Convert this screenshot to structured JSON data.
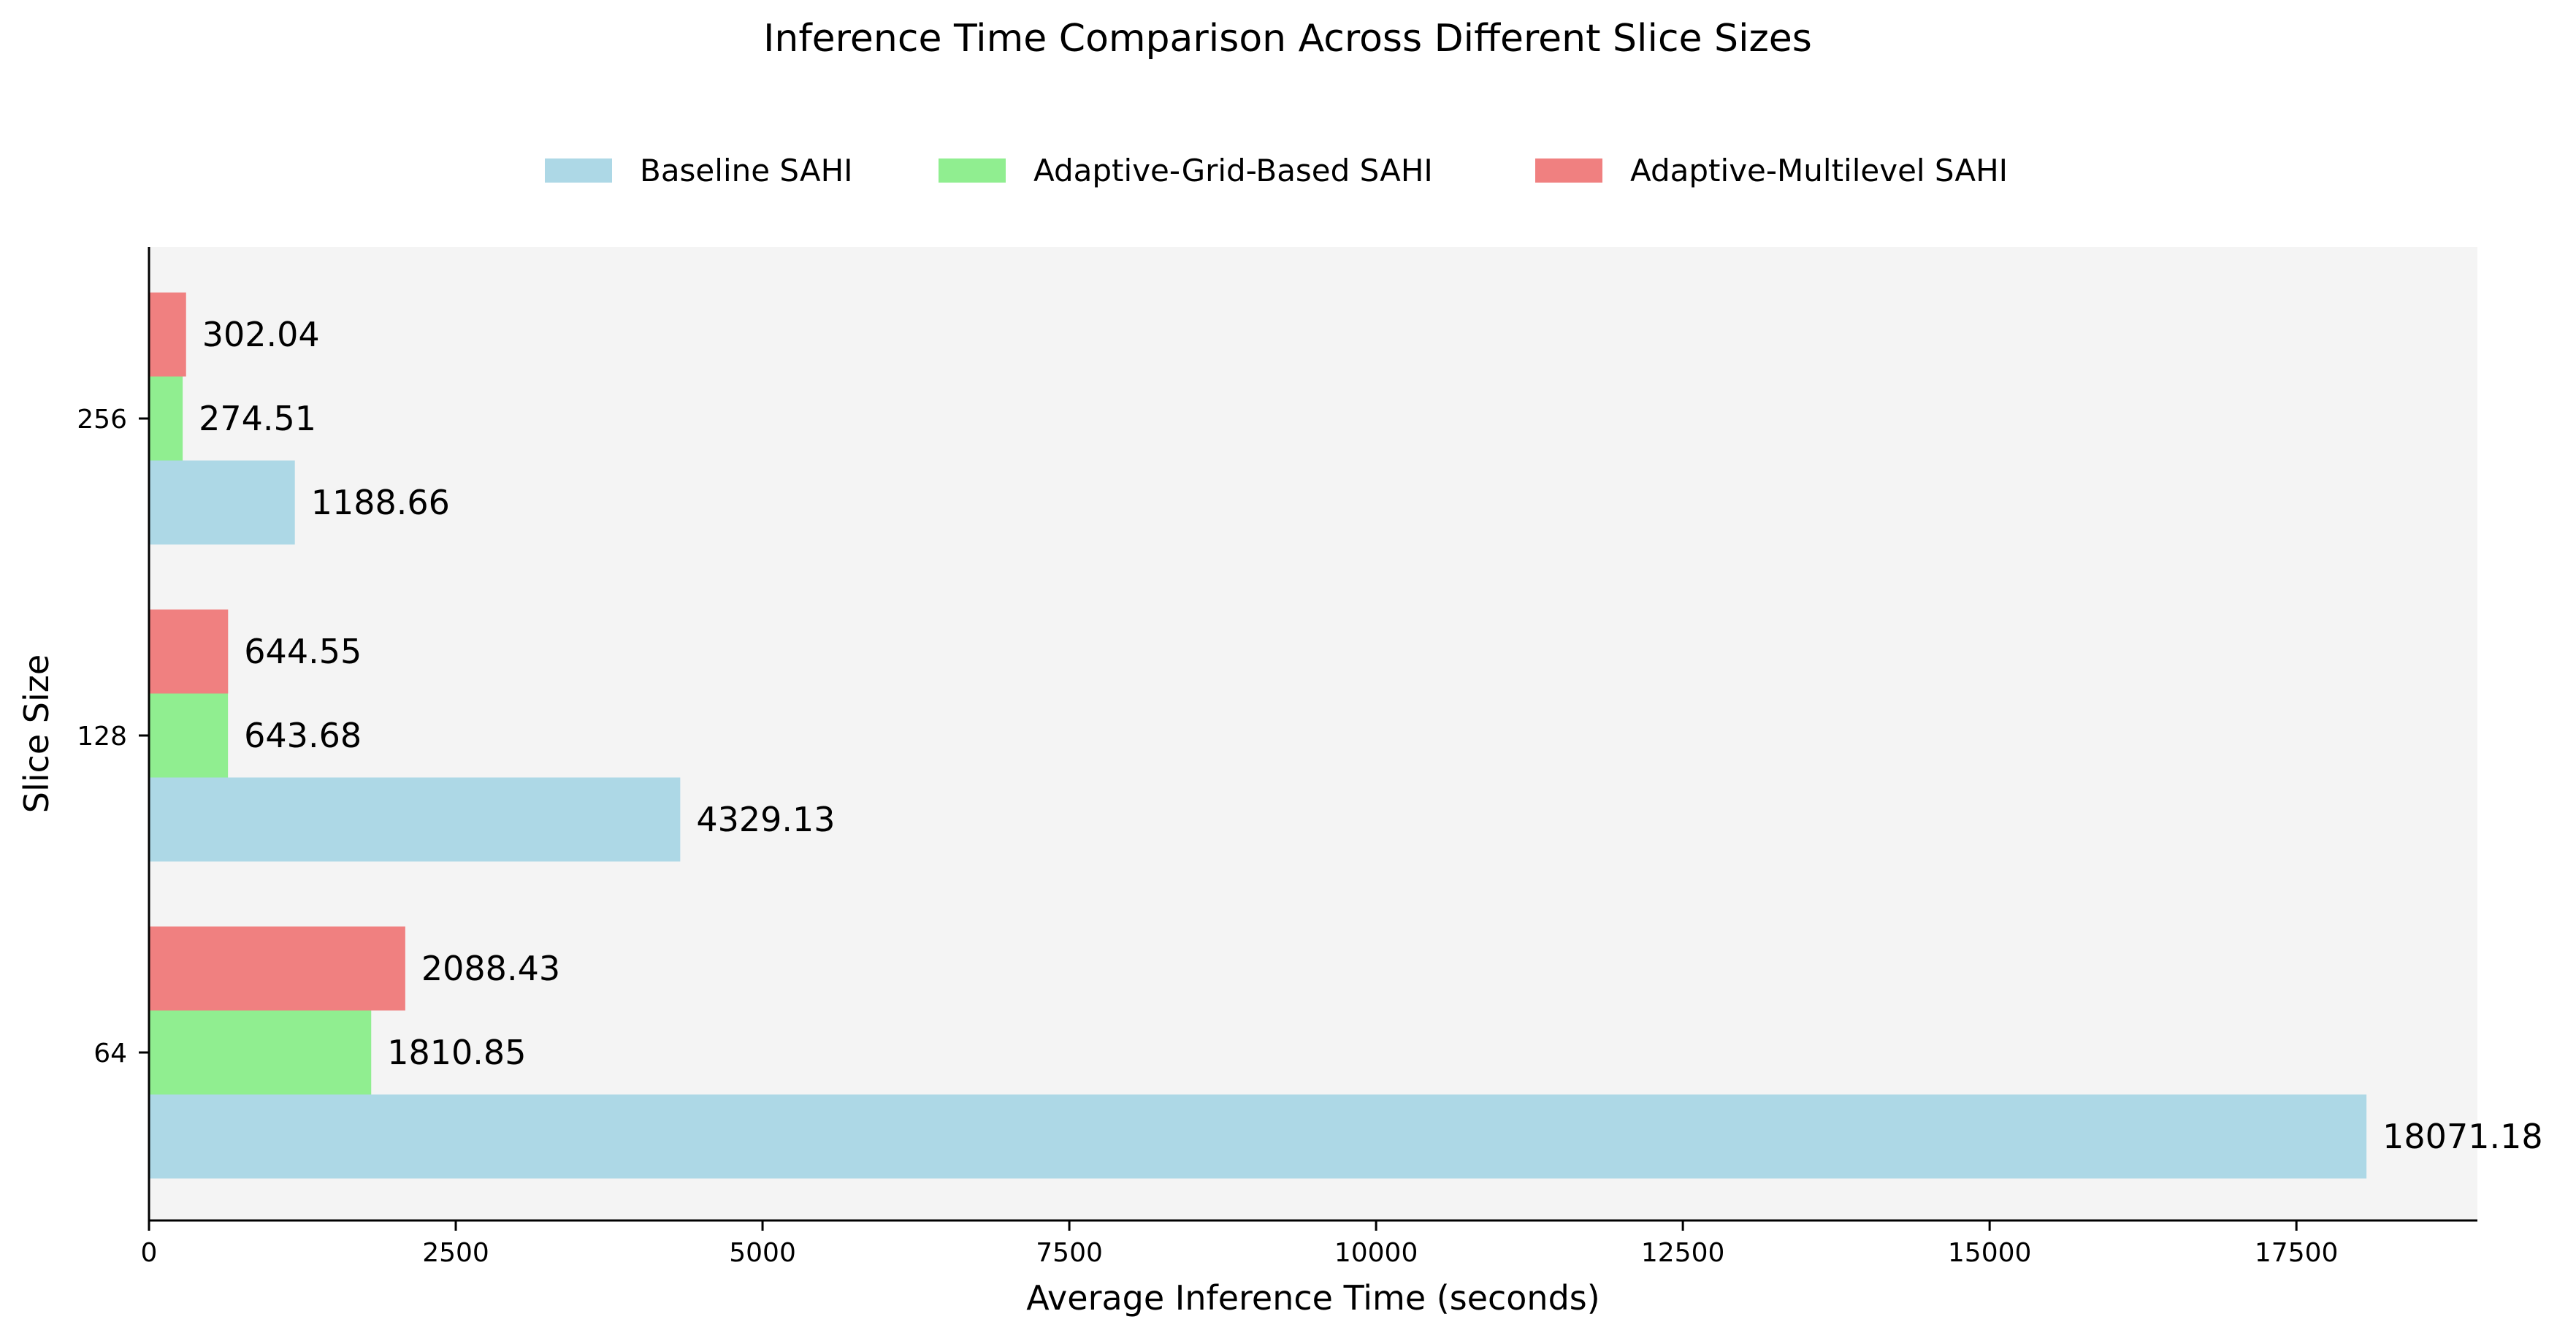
{
  "chart_data": {
    "type": "bar",
    "orientation": "horizontal",
    "title": "Inference Time Comparison Across Different Slice Sizes",
    "xlabel": "Average Inference Time (seconds)",
    "ylabel": "Slice Size",
    "categories": [
      "64",
      "128",
      "256"
    ],
    "series": [
      {
        "name": "Baseline SAHI",
        "color": "#add8e6",
        "values": [
          18071.18,
          4329.13,
          1188.66
        ],
        "labels": [
          "18071.18",
          "4329.13",
          "1188.66"
        ]
      },
      {
        "name": "Adaptive-Grid-Based SAHI",
        "color": "#90ee90",
        "values": [
          1810.85,
          643.68,
          274.51
        ],
        "labels": [
          "1810.85",
          "643.68",
          "274.51"
        ]
      },
      {
        "name": "Adaptive-Multilevel SAHI",
        "color": "#f08080",
        "values": [
          2088.43,
          644.55,
          302.04
        ],
        "labels": [
          "2088.43",
          "644.55",
          "302.04"
        ]
      }
    ],
    "xlim": [
      0,
      18975
    ],
    "xticks": [
      0,
      2500,
      5000,
      7500,
      10000,
      12500,
      15000,
      17500
    ],
    "xtick_labels": [
      "0",
      "2500",
      "5000",
      "7500",
      "10000",
      "12500",
      "15000",
      "17500"
    ],
    "legend_position": "top-center",
    "grid": false,
    "plot_background": "#f4f4f4"
  }
}
